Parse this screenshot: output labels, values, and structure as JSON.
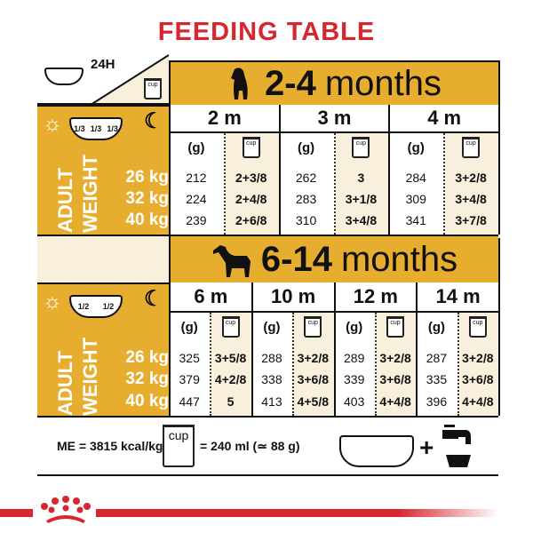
{
  "title": "FEEDING TABLE",
  "corner": {
    "label": "24H",
    "cup_label": "cup"
  },
  "colors": {
    "gold": "#e6ad2e",
    "cream": "#f8efdc",
    "red": "#d7262e"
  },
  "tables": [
    {
      "age_range_bold": "2-4",
      "age_range_unit": "months",
      "icon": "puppy-silhouette-icon",
      "split": [
        "1/3",
        "1/3",
        "1/3"
      ],
      "weight_label_1": "ADULT",
      "weight_label_2": "WEIGHT",
      "weights": [
        "26 kg",
        "32 kg",
        "40 kg"
      ],
      "months": [
        {
          "label": "2 m",
          "g_header": "(g)",
          "cup_header": "cup",
          "grams": [
            "212",
            "224",
            "239"
          ],
          "cups": [
            "2+3/8",
            "2+4/8",
            "2+6/8"
          ]
        },
        {
          "label": "3 m",
          "g_header": "(g)",
          "cup_header": "cup",
          "grams": [
            "262",
            "283",
            "310"
          ],
          "cups": [
            "3",
            "3+1/8",
            "3+4/8"
          ]
        },
        {
          "label": "4 m",
          "g_header": "(g)",
          "cup_header": "cup",
          "grams": [
            "284",
            "309",
            "341"
          ],
          "cups": [
            "3+2/8",
            "3+4/8",
            "3+7/8"
          ]
        }
      ]
    },
    {
      "age_range_bold": "6-14",
      "age_range_unit": "months",
      "icon": "dog-silhouette-icon",
      "split": [
        "1/2",
        "1/2"
      ],
      "weight_label_1": "ADULT",
      "weight_label_2": "WEIGHT",
      "weights": [
        "26 kg",
        "32 kg",
        "40 kg"
      ],
      "months": [
        {
          "label": "6 m",
          "g_header": "(g)",
          "cup_header": "cup",
          "grams": [
            "325",
            "379",
            "447"
          ],
          "cups": [
            "3+5/8",
            "4+2/8",
            "5"
          ]
        },
        {
          "label": "10 m",
          "g_header": "(g)",
          "cup_header": "cup",
          "grams": [
            "288",
            "338",
            "413"
          ],
          "cups": [
            "3+2/8",
            "3+6/8",
            "4+5/8"
          ]
        },
        {
          "label": "12 m",
          "g_header": "(g)",
          "cup_header": "cup",
          "grams": [
            "289",
            "339",
            "403"
          ],
          "cups": [
            "3+2/8",
            "3+6/8",
            "4+4/8"
          ]
        },
        {
          "label": "14 m",
          "g_header": "(g)",
          "cup_header": "cup",
          "grams": [
            "287",
            "335",
            "396"
          ],
          "cups": [
            "3+2/8",
            "3+6/8",
            "4+4/8"
          ]
        }
      ]
    }
  ],
  "footer": {
    "energy": "ME = 3815 kcal/kg",
    "cup_label": "cup",
    "cup_equiv": "= 240 ml (≃ 88 g)",
    "plus": "+"
  }
}
